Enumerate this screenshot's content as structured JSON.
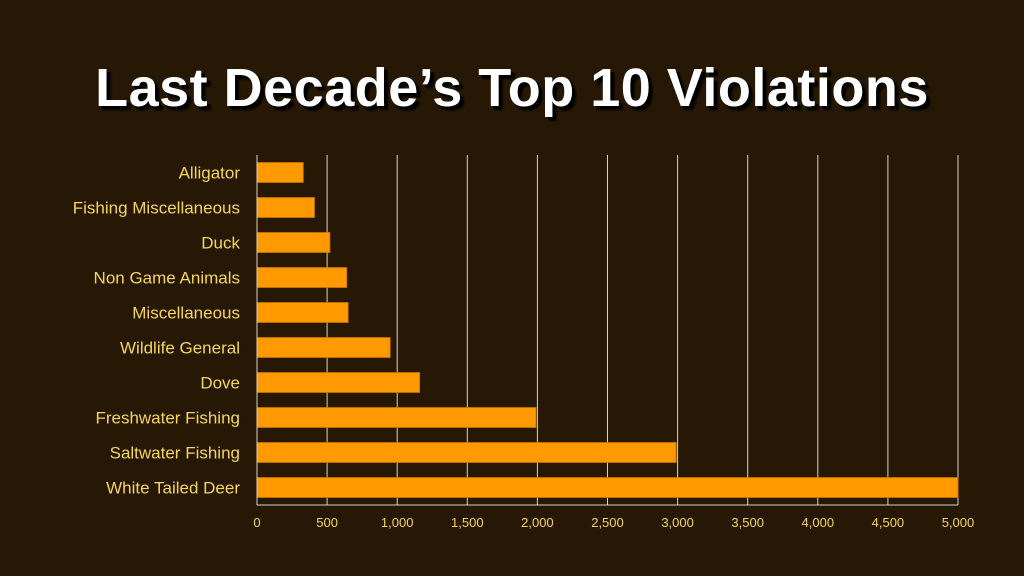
{
  "slide": {
    "title": "Last Decade’s Top 10 Violations"
  },
  "colors": {
    "background": "#261805",
    "bar": "#ff9900",
    "bar_edge": "#c87400",
    "gridline": "#d9d2c0",
    "label": "#f5d65a",
    "title": "#ffffff"
  },
  "chart_data": {
    "type": "bar",
    "orientation": "horizontal",
    "title": "Last Decade’s Top 10 Violations",
    "xlabel": "",
    "ylabel": "",
    "xlim": [
      0,
      5000
    ],
    "grid": true,
    "legend": "none",
    "categories": [
      "Alligator",
      "Fishing Miscellaneous",
      "Duck",
      "Non Game Animals",
      "Miscellaneous",
      "Wildlife General",
      "Dove",
      "Freshwater Fishing",
      "Saltwater Fishing",
      "White Tailed Deer"
    ],
    "values": [
      330,
      410,
      520,
      640,
      650,
      950,
      1160,
      1990,
      2990,
      5000
    ],
    "x_ticks": [
      0,
      500,
      1000,
      1500,
      2000,
      2500,
      3000,
      3500,
      4000,
      4500,
      5000
    ],
    "x_tick_labels": [
      "0",
      "500",
      "1,000",
      "1,500",
      "2,000",
      "2,500",
      "3,000",
      "3,500",
      "4,000",
      "4,500",
      "5,000"
    ]
  }
}
